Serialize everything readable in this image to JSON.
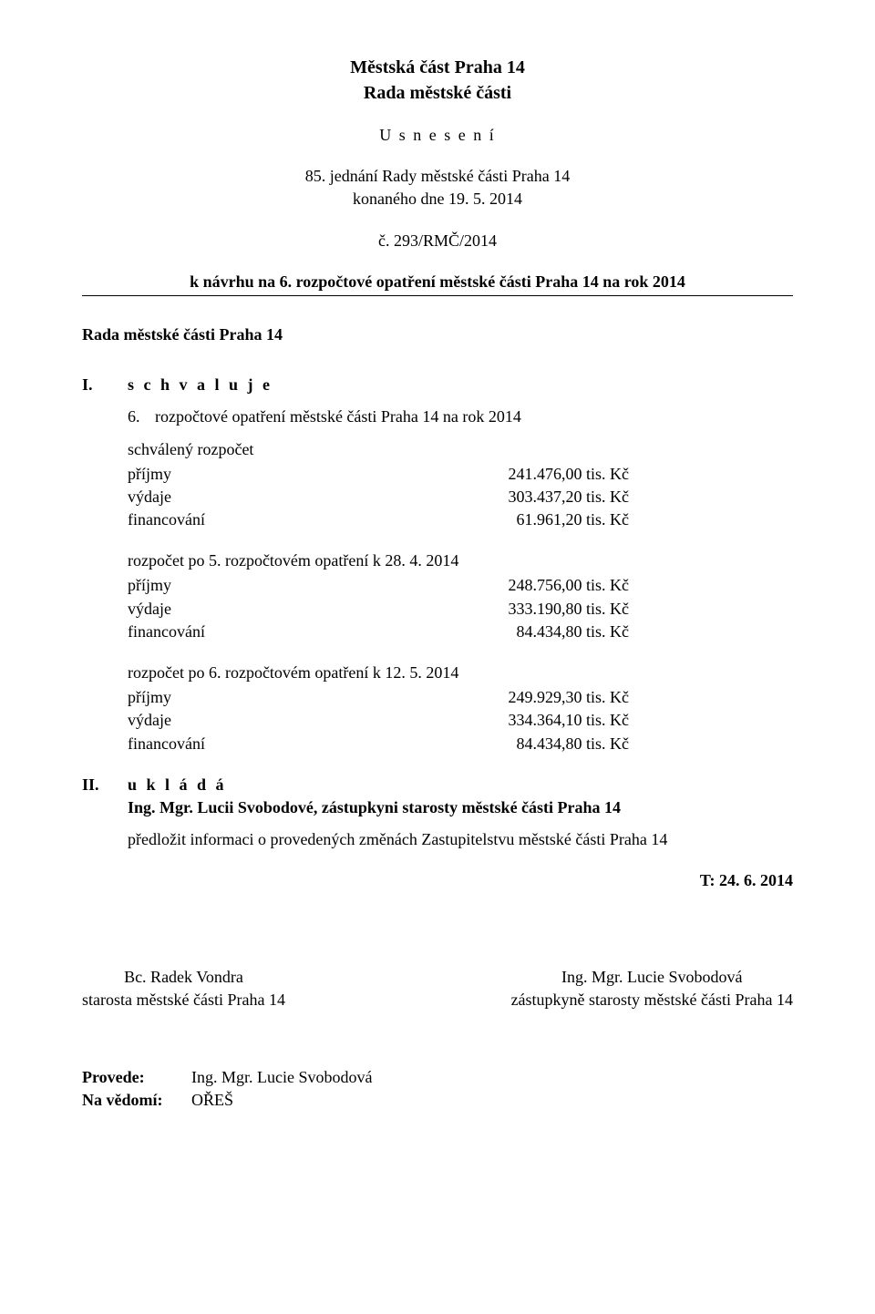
{
  "header": {
    "line1": "Městská část Praha 14",
    "line2": "Rada městské části"
  },
  "resolution_label": "U s n e s e n í",
  "meeting": {
    "line1": "85. jednání Rady městské části Praha 14",
    "line2": "konaného dne 19. 5. 2014"
  },
  "resolution_number": "č. 293/RMČ/2014",
  "subject": "k návrhu na 6. rozpočtové opatření městské části Praha 14 na rok 2014",
  "rada_line": "Rada městské části Praha 14",
  "section1": {
    "roman": "I.",
    "title": "s c h v a l u j e",
    "sub_num": "6.",
    "sub_text": "rozpočtové opatření městské části Praha 14 na rok 2014"
  },
  "budgets": [
    {
      "label": "schválený rozpočet",
      "rows": [
        {
          "key": "příjmy",
          "val": "241.476,00  tis. Kč"
        },
        {
          "key": "výdaje",
          "val": "303.437,20  tis. Kč"
        },
        {
          "key": "financování",
          "val": "61.961,20  tis. Kč"
        }
      ]
    },
    {
      "label": "rozpočet po 5. rozpočtovém opatření k  28. 4. 2014",
      "rows": [
        {
          "key": "příjmy",
          "val": "248.756,00  tis. Kč"
        },
        {
          "key": "výdaje",
          "val": "333.190,80  tis. Kč"
        },
        {
          "key": "financování",
          "val": "84.434,80  tis. Kč"
        }
      ]
    },
    {
      "label": "rozpočet po 6. rozpočtovém opatření k  12. 5. 2014",
      "rows": [
        {
          "key": "příjmy",
          "val": "249.929,30  tis. Kč"
        },
        {
          "key": "výdaje",
          "val": "334.364,10  tis. Kč"
        },
        {
          "key": "financování",
          "val": "84.434,80  tis. Kč"
        }
      ]
    }
  ],
  "section2": {
    "roman": "II.",
    "title": "u k l á d á",
    "assignee": "Ing. Mgr. Lucii Svobodové, zástupkyni starosty městské části Praha 14",
    "task": "předložit informaci o provedených změnách Zastupitelstvu městské části Praha 14",
    "deadline": "T: 24. 6. 2014"
  },
  "signatures": {
    "left": {
      "name": "Bc. Radek Vondra",
      "role": "starosta městské části Praha 14"
    },
    "right": {
      "name": "Ing. Mgr. Lucie Svobodová",
      "role": "zástupkyně starosty městské části Praha 14"
    }
  },
  "footer": {
    "provede_label": "Provede:",
    "provede_val": "Ing. Mgr. Lucie Svobodová",
    "navedomi_label": "Na vědomí:",
    "navedomi_val": "OŘEŠ"
  }
}
